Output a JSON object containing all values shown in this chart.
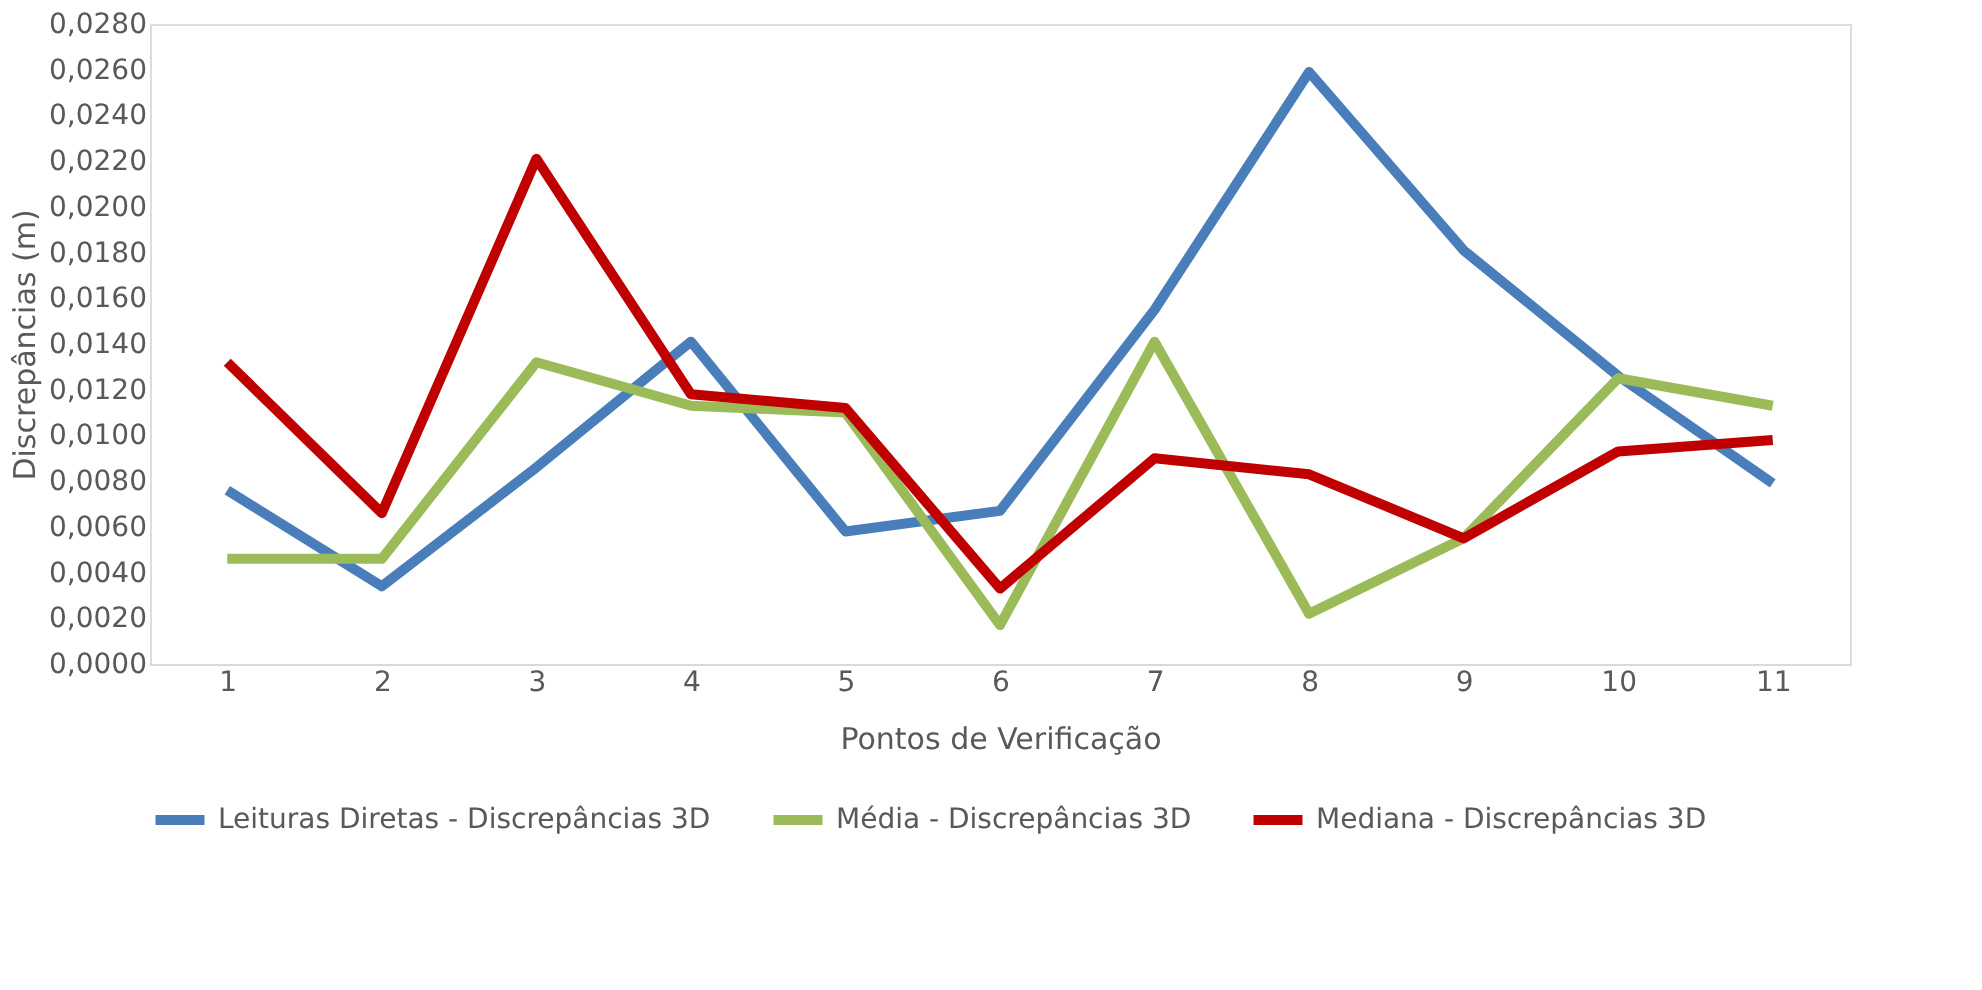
{
  "chart_data": {
    "type": "line",
    "xlabel": "Pontos de Verificação",
    "ylabel": "Discrepâncias (m)",
    "categories": [
      "1",
      "2",
      "3",
      "4",
      "5",
      "6",
      "7",
      "8",
      "9",
      "10",
      "11"
    ],
    "series": [
      {
        "name": "Leituras Diretas - Discrepâncias 3D",
        "color": "#4a7ebb",
        "values": [
          0.0076,
          0.0034,
          0.0086,
          0.0141,
          0.0058,
          0.0067,
          0.0155,
          0.0259,
          0.0181,
          0.0126,
          0.0079
        ]
      },
      {
        "name": "Média - Discrepâncias 3D",
        "color": "#9bbb59",
        "values": [
          0.0046,
          0.0046,
          0.0132,
          0.0113,
          0.011,
          0.0017,
          0.0141,
          0.0022,
          0.0055,
          0.0125,
          0.0113
        ]
      },
      {
        "name": "Mediana - Discrepâncias 3D",
        "color": "#c00000",
        "values": [
          0.0132,
          0.0066,
          0.0221,
          0.0118,
          0.0112,
          0.0033,
          0.009,
          0.0083,
          0.0055,
          0.0093,
          0.0098
        ]
      }
    ],
    "ylim": [
      0,
      0.028
    ],
    "yticks": [
      {
        "value": 0,
        "label": "0,0000"
      },
      {
        "value": 0.002,
        "label": "0,0020"
      },
      {
        "value": 0.004,
        "label": "0,0040"
      },
      {
        "value": 0.006,
        "label": "0,0060"
      },
      {
        "value": 0.008,
        "label": "0,0080"
      },
      {
        "value": 0.01,
        "label": "0,0100"
      },
      {
        "value": 0.012,
        "label": "0,0120"
      },
      {
        "value": 0.014,
        "label": "0,0140"
      },
      {
        "value": 0.016,
        "label": "0,0160"
      },
      {
        "value": 0.018,
        "label": "0,0180"
      },
      {
        "value": 0.02,
        "label": "0,0200"
      },
      {
        "value": 0.022,
        "label": "0,0220"
      },
      {
        "value": 0.024,
        "label": "0,0240"
      },
      {
        "value": 0.026,
        "label": "0,0260"
      },
      {
        "value": 0.028,
        "label": "0,0280"
      }
    ],
    "grid": false,
    "legend": "bottom",
    "marker": "none",
    "line_style": "solid"
  }
}
